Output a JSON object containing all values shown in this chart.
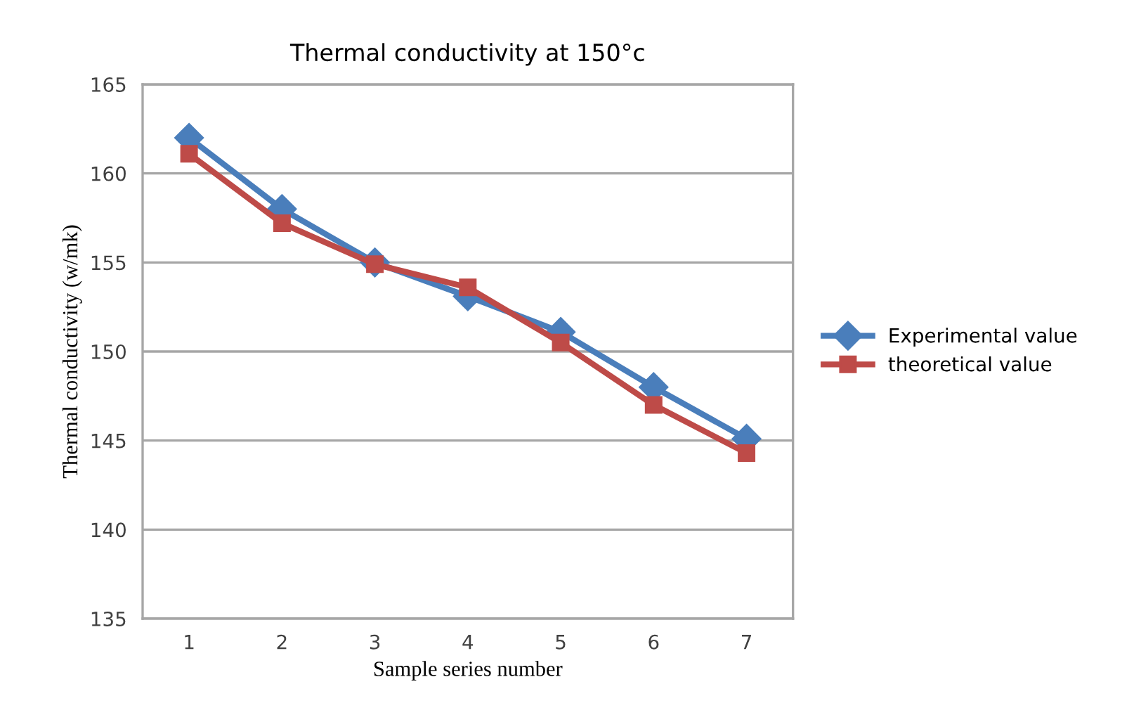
{
  "chart_data": {
    "type": "line",
    "title": "Thermal conductivity at 150°c",
    "xlabel": "Sample series number",
    "ylabel": "Thermal conductivity (w/mk)",
    "categories": [
      "1",
      "2",
      "3",
      "4",
      "5",
      "6",
      "7"
    ],
    "series": [
      {
        "name": "Experimental value",
        "color": "#4a7ebb",
        "marker": "diamond",
        "values": [
          162,
          158,
          155,
          153.1,
          151.1,
          148,
          145.1
        ]
      },
      {
        "name": "theoretical value",
        "color": "#be4b48",
        "marker": "square",
        "values": [
          161.1,
          157.2,
          154.9,
          153.6,
          150.5,
          147,
          144.3
        ]
      }
    ],
    "ylim": [
      135,
      165
    ],
    "yticks": [
      135,
      140,
      145,
      150,
      155,
      160,
      165
    ],
    "grid": "y",
    "legend": "right",
    "line_style": "solid"
  }
}
